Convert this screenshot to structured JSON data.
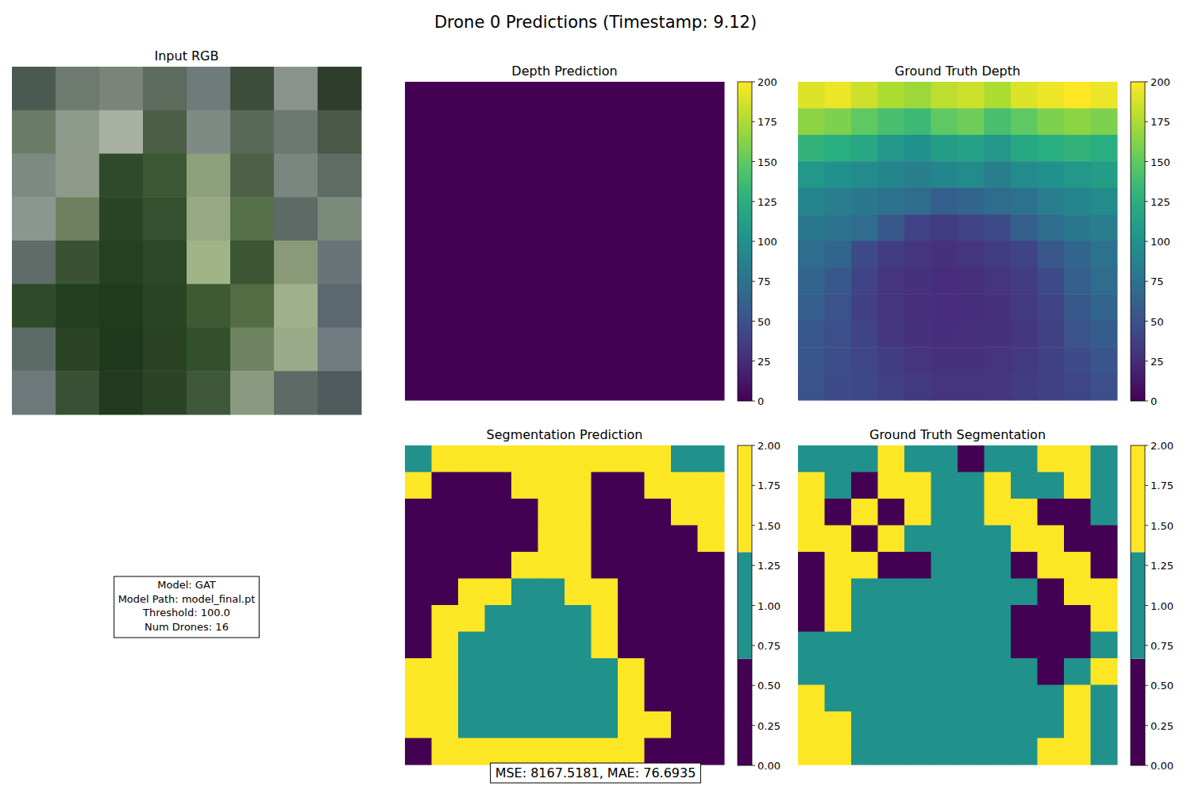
{
  "title": "Drone 0 Predictions (Timestamp: 9.12)",
  "info": [
    "Model: GAT",
    "Model Path: model_final.pt",
    "Threshold: 100.0",
    "Num Drones: 16"
  ],
  "metrics": "MSE: 8167.5181, MAE: 76.6935",
  "chart_data": [
    {
      "type": "image",
      "title": "Input RGB",
      "colors": [
        [
          "#4a5a50",
          "#6e7a70",
          "#7a8478",
          "#5d6b5e",
          "#6f7b7a",
          "#3e4e3c",
          "#8a928c",
          "#2e3d2c"
        ],
        [
          "#6a7c66",
          "#8e9a8c",
          "#a8b0a4",
          "#4c5f46",
          "#7e8a84",
          "#5a6a58",
          "#6c7870",
          "#4a5848"
        ],
        [
          "#7c8a82",
          "#8f9a8a",
          "#2f4a2a",
          "#3d5834",
          "#8da07c",
          "#4e6048",
          "#7a8680",
          "#5f6c64"
        ],
        [
          "#8a9690",
          "#6f8060",
          "#2a4426",
          "#34502e",
          "#96a884",
          "#56704a",
          "#5e6a66",
          "#7a8a7a"
        ],
        [
          "#5f6c68",
          "#3a5232",
          "#24401f",
          "#2c4826",
          "#a0b488",
          "#3c5634",
          "#8a9a78",
          "#687478"
        ],
        [
          "#2f4a2a",
          "#22401e",
          "#1f3b1c",
          "#2a4524",
          "#3d5a32",
          "#546c44",
          "#a0b08c",
          "#5c6870"
        ],
        [
          "#5c6a66",
          "#2a4424",
          "#1e381b",
          "#284222",
          "#33502c",
          "#6e8460",
          "#9aaa88",
          "#707c80"
        ],
        [
          "#6c787a",
          "#3a5034",
          "#22391d",
          "#2c4426",
          "#40583a",
          "#8a9a80",
          "#5e6a66",
          "#4e5a5c"
        ]
      ]
    },
    {
      "type": "heatmap",
      "title": "Depth Prediction",
      "cells": [
        [
          0
        ]
      ],
      "colorbar_range": [
        0,
        200
      ],
      "colorbar_ticks": [
        0,
        25,
        50,
        75,
        100,
        125,
        150,
        175,
        200
      ]
    },
    {
      "type": "heatmap",
      "title": "Ground Truth Depth",
      "cells": [
        [
          190,
          195,
          185,
          175,
          170,
          180,
          185,
          175,
          190,
          195,
          200,
          195
        ],
        [
          165,
          160,
          150,
          140,
          135,
          150,
          155,
          140,
          150,
          160,
          165,
          160
        ],
        [
          130,
          125,
          120,
          105,
          100,
          110,
          115,
          105,
          120,
          125,
          130,
          125
        ],
        [
          105,
          100,
          95,
          90,
          85,
          90,
          95,
          85,
          95,
          100,
          105,
          110
        ],
        [
          90,
          85,
          80,
          75,
          70,
          60,
          65,
          70,
          75,
          85,
          90,
          95
        ],
        [
          80,
          75,
          70,
          55,
          40,
          35,
          40,
          45,
          60,
          70,
          80,
          85
        ],
        [
          70,
          65,
          45,
          35,
          30,
          28,
          30,
          35,
          40,
          55,
          65,
          75
        ],
        [
          65,
          55,
          40,
          30,
          28,
          25,
          27,
          30,
          35,
          45,
          60,
          70
        ],
        [
          60,
          50,
          38,
          30,
          27,
          25,
          26,
          28,
          33,
          40,
          55,
          65
        ],
        [
          55,
          48,
          40,
          32,
          28,
          26,
          27,
          28,
          32,
          38,
          50,
          58
        ],
        [
          52,
          47,
          42,
          35,
          30,
          28,
          28,
          30,
          33,
          38,
          45,
          52
        ],
        [
          50,
          46,
          43,
          38,
          33,
          30,
          30,
          32,
          35,
          38,
          42,
          48
        ]
      ],
      "colorbar_range": [
        0,
        200
      ],
      "colorbar_ticks": [
        0,
        25,
        50,
        75,
        100,
        125,
        150,
        175,
        200
      ]
    },
    {
      "type": "segmentation",
      "title": "Segmentation Prediction",
      "cells": [
        [
          1,
          2,
          2,
          2,
          2,
          2,
          2,
          2,
          2,
          2,
          1,
          1
        ],
        [
          2,
          0,
          0,
          0,
          2,
          2,
          2,
          0,
          0,
          2,
          2,
          2
        ],
        [
          0,
          0,
          0,
          0,
          0,
          2,
          2,
          0,
          0,
          0,
          2,
          2
        ],
        [
          0,
          0,
          0,
          0,
          0,
          2,
          2,
          0,
          0,
          0,
          0,
          2
        ],
        [
          0,
          0,
          0,
          0,
          2,
          2,
          2,
          0,
          0,
          0,
          0,
          0
        ],
        [
          0,
          0,
          2,
          2,
          1,
          1,
          2,
          2,
          0,
          0,
          0,
          0
        ],
        [
          0,
          2,
          2,
          1,
          1,
          1,
          1,
          2,
          0,
          0,
          0,
          0
        ],
        [
          0,
          2,
          1,
          1,
          1,
          1,
          1,
          2,
          0,
          0,
          0,
          0
        ],
        [
          2,
          2,
          1,
          1,
          1,
          1,
          1,
          1,
          2,
          0,
          0,
          0
        ],
        [
          2,
          2,
          1,
          1,
          1,
          1,
          1,
          1,
          2,
          0,
          0,
          0
        ],
        [
          2,
          2,
          1,
          1,
          1,
          1,
          1,
          1,
          2,
          2,
          0,
          0
        ],
        [
          0,
          2,
          2,
          2,
          2,
          2,
          2,
          2,
          2,
          0,
          0,
          0
        ]
      ],
      "colorbar_range": [
        0,
        2
      ],
      "colorbar_ticks": [
        {
          "value": 0,
          "label": "0.00"
        },
        {
          "value": 0.25,
          "label": "0.25"
        },
        {
          "value": 0.5,
          "label": "0.50"
        },
        {
          "value": 0.75,
          "label": "0.75"
        },
        {
          "value": 1,
          "label": "1.00"
        },
        {
          "value": 1.25,
          "label": "1.25"
        },
        {
          "value": 1.5,
          "label": "1.50"
        },
        {
          "value": 1.75,
          "label": "1.75"
        },
        {
          "value": 2,
          "label": "2.00"
        }
      ]
    },
    {
      "type": "segmentation",
      "title": "Ground Truth Segmentation",
      "cells": [
        [
          1,
          1,
          1,
          2,
          1,
          1,
          0,
          1,
          1,
          2,
          2,
          1
        ],
        [
          2,
          1,
          0,
          2,
          2,
          1,
          1,
          2,
          1,
          1,
          2,
          1
        ],
        [
          2,
          0,
          2,
          0,
          2,
          1,
          1,
          2,
          2,
          0,
          0,
          1
        ],
        [
          2,
          2,
          0,
          2,
          1,
          1,
          1,
          1,
          2,
          2,
          0,
          0
        ],
        [
          0,
          2,
          2,
          0,
          0,
          1,
          1,
          1,
          0,
          2,
          2,
          0
        ],
        [
          0,
          2,
          1,
          1,
          1,
          1,
          1,
          1,
          1,
          0,
          2,
          2
        ],
        [
          0,
          2,
          1,
          1,
          1,
          1,
          1,
          1,
          0,
          0,
          0,
          2
        ],
        [
          1,
          1,
          1,
          1,
          1,
          1,
          1,
          1,
          0,
          0,
          0,
          1
        ],
        [
          1,
          1,
          1,
          1,
          1,
          1,
          1,
          1,
          1,
          0,
          1,
          2
        ],
        [
          2,
          1,
          1,
          1,
          1,
          1,
          1,
          1,
          1,
          1,
          2,
          1
        ],
        [
          2,
          2,
          1,
          1,
          1,
          1,
          1,
          1,
          1,
          1,
          2,
          1
        ],
        [
          2,
          2,
          1,
          1,
          1,
          1,
          1,
          1,
          1,
          2,
          2,
          1
        ]
      ],
      "colorbar_range": [
        0,
        2
      ],
      "colorbar_ticks": [
        {
          "value": 0,
          "label": "0.00"
        },
        {
          "value": 0.25,
          "label": "0.25"
        },
        {
          "value": 0.5,
          "label": "0.50"
        },
        {
          "value": 0.75,
          "label": "0.75"
        },
        {
          "value": 1,
          "label": "1.00"
        },
        {
          "value": 1.25,
          "label": "1.25"
        },
        {
          "value": 1.5,
          "label": "1.50"
        },
        {
          "value": 1.75,
          "label": "1.75"
        },
        {
          "value": 2,
          "label": "2.00"
        }
      ]
    }
  ]
}
